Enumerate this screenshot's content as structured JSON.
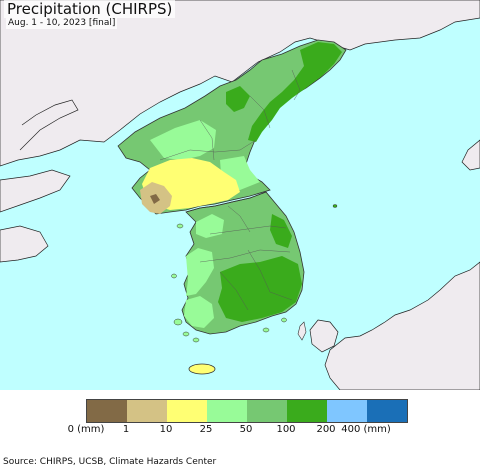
{
  "title": "Precipitation (CHIRPS)",
  "subtitle": "Aug. 1 - 10, 2023 [final]",
  "colors": {
    "ocean": "#bfffff",
    "land_other": "#efebef",
    "c_0_1": "#826a46",
    "c_1_10": "#d4c285",
    "c_10_25": "#ffff73",
    "c_25_50": "#98fb98",
    "c_50_100": "#76c872",
    "c_100_200": "#3aab1c",
    "c_200_400": "#7fc6ff",
    "c_400_plus": "#1a6fb7"
  },
  "legend": {
    "swatches": [
      "#826a46",
      "#d4c285",
      "#ffff73",
      "#98fb98",
      "#76c872",
      "#3aab1c",
      "#7fc6ff",
      "#1a6fb7"
    ],
    "labels": [
      "0 (mm)",
      "1",
      "10",
      "25",
      "50",
      "100",
      "200",
      "400 (mm)"
    ]
  },
  "source": "Source: CHIRPS, UCSB, Climate Hazards Center"
}
